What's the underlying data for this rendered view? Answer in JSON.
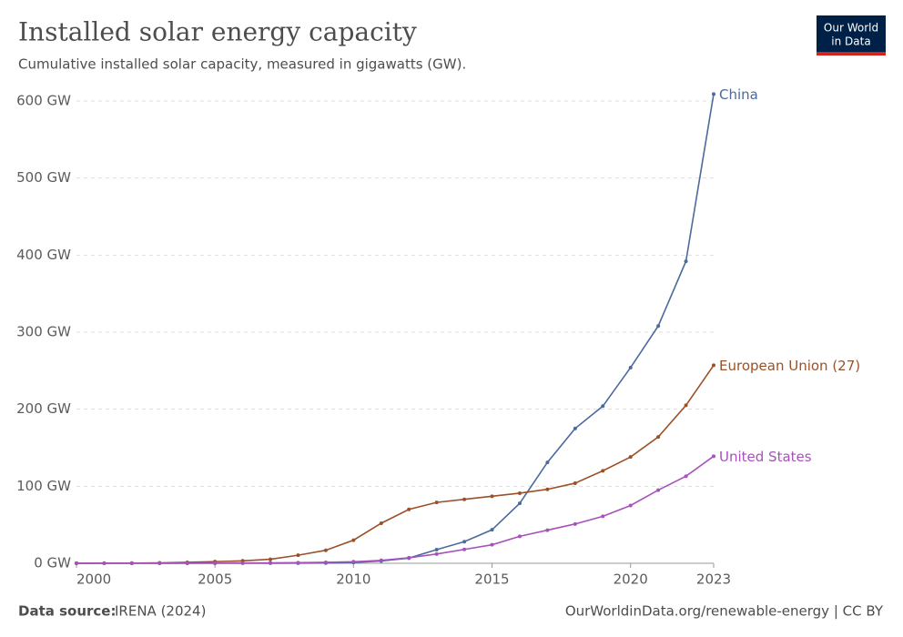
{
  "chart_data": {
    "type": "line",
    "title": "Installed solar energy capacity",
    "subtitle": "Cumulative installed solar capacity, measured in gigawatts (GW).",
    "logo": [
      "Our World",
      "in Data"
    ],
    "source_label": "Data source:",
    "source": "IRENA (2024)",
    "footer_right": "OurWorldinData.org/renewable-energy | CC BY",
    "x": [
      2000,
      2001,
      2002,
      2003,
      2004,
      2005,
      2006,
      2007,
      2008,
      2009,
      2010,
      2011,
      2012,
      2013,
      2014,
      2015,
      2016,
      2017,
      2018,
      2019,
      2020,
      2021,
      2022,
      2023
    ],
    "series": [
      {
        "name": "China",
        "color": "#4c6a9c",
        "values": [
          0.02,
          0.02,
          0.02,
          0.05,
          0.06,
          0.07,
          0.08,
          0.1,
          0.14,
          0.3,
          1,
          3,
          6.7,
          17.7,
          28,
          43.5,
          77.8,
          131,
          175,
          204,
          254,
          308,
          392,
          609
        ]
      },
      {
        "name": "European Union (27)",
        "color": "#9a5129",
        "values": [
          0.1,
          0.2,
          0.3,
          0.6,
          1.2,
          2.2,
          3.2,
          5.2,
          10.5,
          16.9,
          30,
          52,
          70,
          79,
          83,
          87,
          91,
          96,
          104,
          120,
          138,
          164,
          205,
          257
        ]
      },
      {
        "name": "United States",
        "color": "#a652ba",
        "values": [
          0.02,
          0.03,
          0.05,
          0.1,
          0.2,
          0.3,
          0.4,
          0.6,
          0.8,
          1.2,
          2,
          3.8,
          7.2,
          12,
          18,
          24,
          35,
          43,
          51,
          61,
          75,
          95,
          113,
          139
        ]
      }
    ],
    "xlim": [
      2000,
      2023
    ],
    "xticks": [
      2000,
      2005,
      2010,
      2015,
      2020,
      2023
    ],
    "ylim": [
      0,
      600
    ],
    "yticks": [
      {
        "value": 0,
        "label": "0 GW"
      },
      {
        "value": 100,
        "label": "100 GW"
      },
      {
        "value": 200,
        "label": "200 GW"
      },
      {
        "value": 300,
        "label": "300 GW"
      },
      {
        "value": 400,
        "label": "400 GW"
      },
      {
        "value": 500,
        "label": "500 GW"
      },
      {
        "value": 600,
        "label": "600 GW"
      }
    ],
    "grid": true
  }
}
